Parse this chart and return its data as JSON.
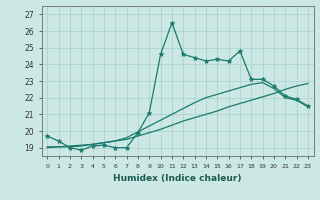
{
  "title": "",
  "xlabel": "Humidex (Indice chaleur)",
  "background_color": "#cce8e4",
  "grid_color": "#aacfcb",
  "line_color": "#1a7a6e",
  "xlim": [
    -0.5,
    23.5
  ],
  "ylim": [
    18.5,
    27.5
  ],
  "xticks": [
    0,
    1,
    2,
    3,
    4,
    5,
    6,
    7,
    8,
    9,
    10,
    11,
    12,
    13,
    14,
    15,
    16,
    17,
    18,
    19,
    20,
    21,
    22,
    23
  ],
  "yticks": [
    19,
    20,
    21,
    22,
    23,
    24,
    25,
    26,
    27
  ],
  "line1_x": [
    0,
    1,
    2,
    3,
    4,
    5,
    6,
    7,
    8,
    9,
    10,
    11,
    12,
    13,
    14,
    15,
    16,
    17,
    18,
    19,
    20,
    21,
    22,
    23
  ],
  "line1_y": [
    19.7,
    19.4,
    19.0,
    18.85,
    19.1,
    19.15,
    19.0,
    19.0,
    19.9,
    21.1,
    24.6,
    26.5,
    24.6,
    24.4,
    24.2,
    24.3,
    24.2,
    24.8,
    23.1,
    23.1,
    22.7,
    22.1,
    21.9,
    21.5
  ],
  "line2_x": [
    0,
    1,
    2,
    3,
    4,
    5,
    6,
    7,
    8,
    9,
    10,
    11,
    12,
    13,
    14,
    15,
    16,
    17,
    18,
    19,
    20,
    21,
    22,
    23
  ],
  "line2_y": [
    19.0,
    19.05,
    19.1,
    19.15,
    19.2,
    19.3,
    19.4,
    19.5,
    19.7,
    19.9,
    20.1,
    20.35,
    20.6,
    20.8,
    21.0,
    21.2,
    21.45,
    21.65,
    21.85,
    22.05,
    22.25,
    22.5,
    22.7,
    22.85
  ],
  "line3_x": [
    0,
    1,
    2,
    3,
    4,
    5,
    6,
    7,
    8,
    9,
    10,
    11,
    12,
    13,
    14,
    15,
    16,
    17,
    18,
    19,
    20,
    21,
    22,
    23
  ],
  "line3_y": [
    19.05,
    19.05,
    19.05,
    19.1,
    19.2,
    19.3,
    19.4,
    19.6,
    19.95,
    20.3,
    20.65,
    21.0,
    21.35,
    21.7,
    22.0,
    22.2,
    22.4,
    22.6,
    22.8,
    22.9,
    22.55,
    22.0,
    21.85,
    21.45
  ]
}
